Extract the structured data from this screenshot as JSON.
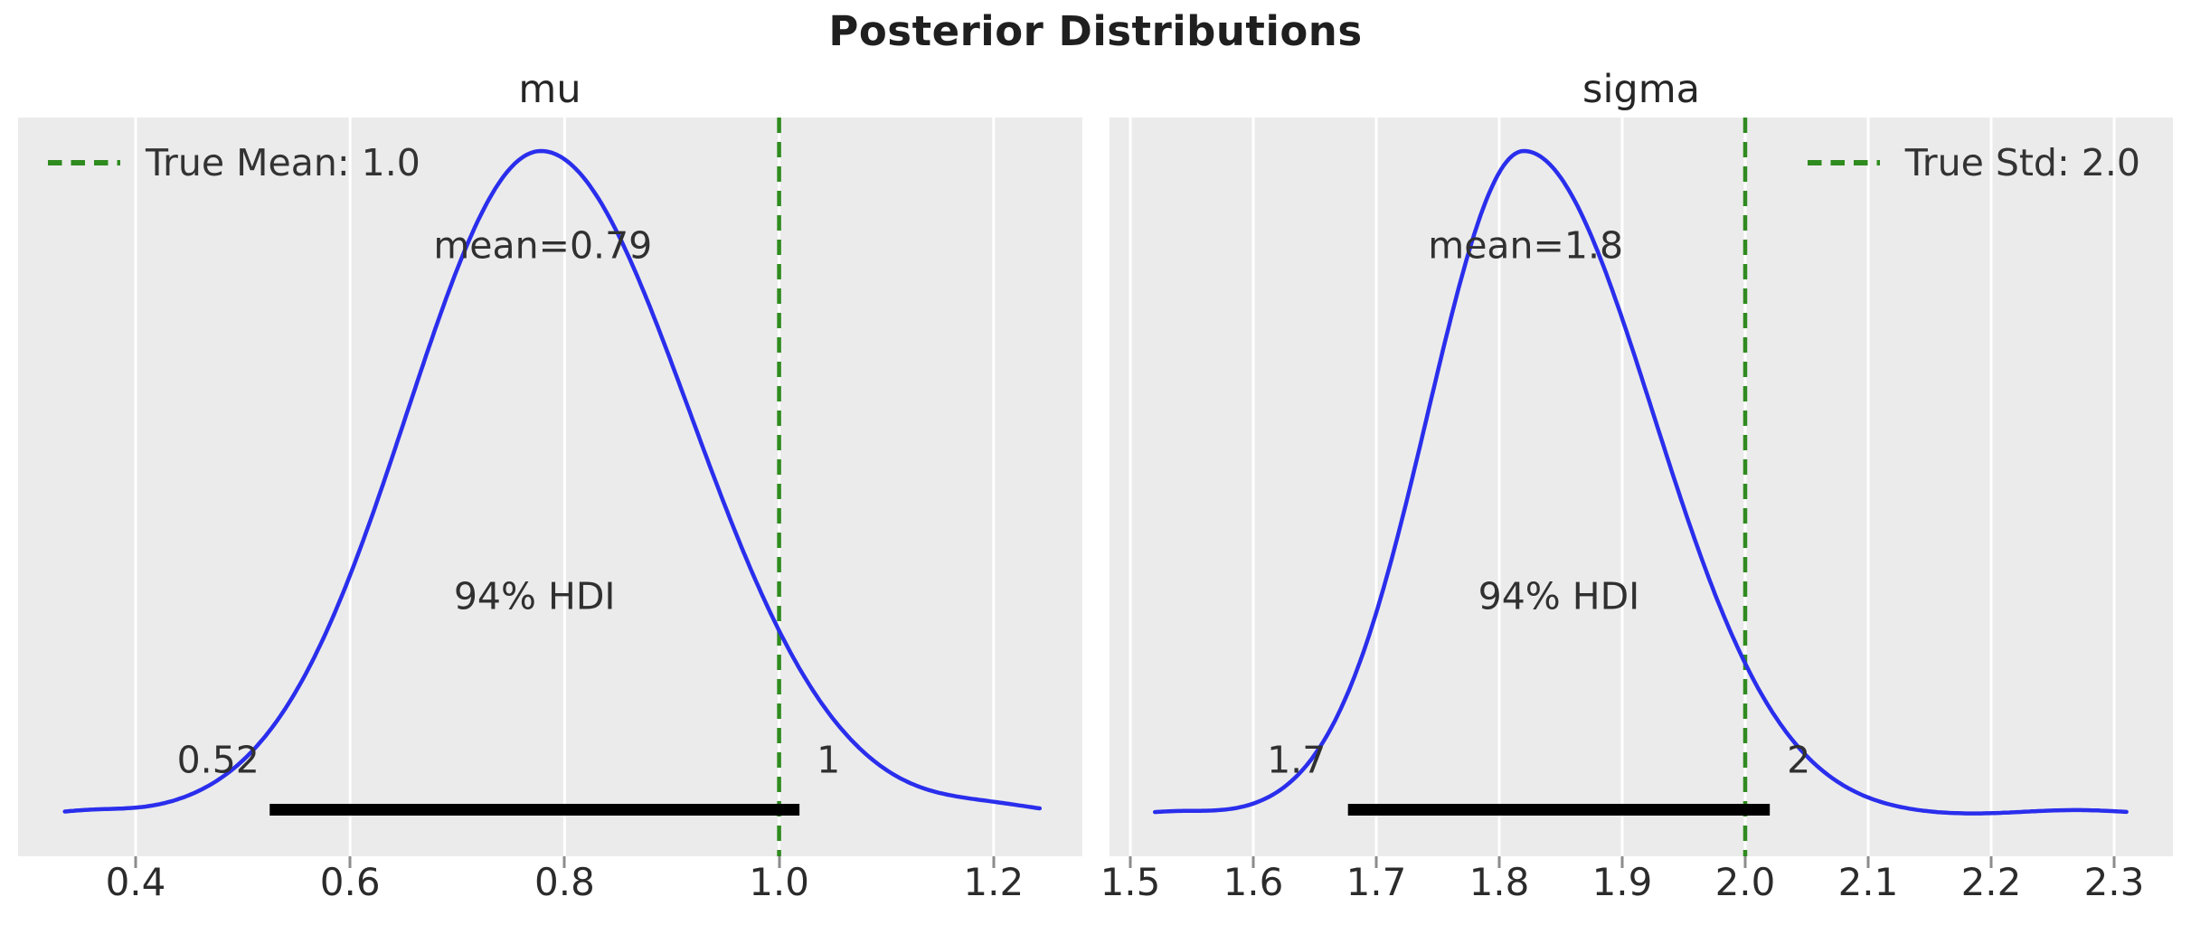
{
  "title": "Posterior Distributions",
  "colors": {
    "curve": "#2a2eec",
    "reference": "#2f8b1f",
    "background": "#ebebeb",
    "grid": "#ffffff",
    "hdi_bar": "#000000",
    "text": "#303030"
  },
  "chart_data": [
    {
      "type": "line",
      "title": "mu",
      "mean": 0.79,
      "mean_label": "mean=0.79",
      "hdi": {
        "label": "94% HDI",
        "low": 0.525,
        "high": 1.019,
        "low_label": "0.52",
        "high_label": "1"
      },
      "reference_line": {
        "value": 1.0,
        "label": "True Mean: 1.0",
        "style": "dashed"
      },
      "xlim": [
        0.2904,
        1.2828
      ],
      "x_tick_values": [
        0.4,
        0.6,
        0.8,
        1.0,
        1.2
      ],
      "x_tick_labels": [
        "0.4",
        "0.6",
        "0.8",
        "1.0",
        "1.2"
      ],
      "grid": "vertical-white",
      "legend_position": "upper-left",
      "curve": {
        "peak": 0.778,
        "sigma_left": 0.125,
        "sigma_right": 0.139,
        "start": 0.334,
        "end": 1.243,
        "tail_bumps": [
          {
            "x": 0.355,
            "amp": 5,
            "sigma": 0.035
          },
          {
            "x": 1.2,
            "amp": 9,
            "sigma": 0.05
          }
        ]
      }
    },
    {
      "type": "line",
      "title": "sigma",
      "mean": 1.8,
      "mean_label": "mean=1.8",
      "hdi": {
        "label": "94% HDI",
        "low": 1.677,
        "high": 2.02,
        "low_label": "1.7",
        "high_label": "2"
      },
      "reference_line": {
        "value": 2.0,
        "label": "True Std: 2.0",
        "style": "dashed"
      },
      "xlim": [
        1.4831,
        2.3478
      ],
      "x_tick_values": [
        1.5,
        1.6,
        1.7,
        1.8,
        1.9,
        2.0,
        2.1,
        2.2,
        2.3
      ],
      "x_tick_labels": [
        "1.5",
        "1.6",
        "1.7",
        "1.8",
        "1.9",
        "2.0",
        "2.1",
        "2.2",
        "2.3"
      ],
      "grid": "vertical-white",
      "legend_position": "upper-right",
      "curve": {
        "peak": 1.82,
        "sigma_left": 0.078,
        "sigma_right": 0.105,
        "start": 1.52,
        "end": 2.31,
        "tail_bumps": [
          {
            "x": 1.535,
            "amp": 5,
            "sigma": 0.03
          },
          {
            "x": 2.27,
            "amp": 7,
            "sigma": 0.05
          }
        ]
      }
    }
  ]
}
